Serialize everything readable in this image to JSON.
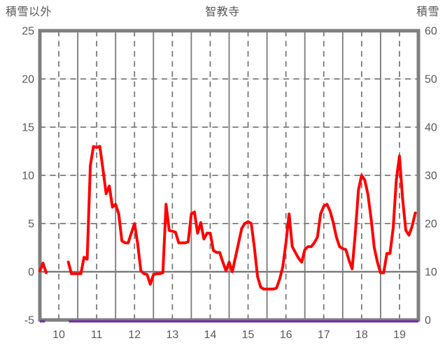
{
  "header": {
    "left_axis_title": "積雪以外",
    "chart_title": "智教寺",
    "right_axis_title": "積雪"
  },
  "chart_data": {
    "type": "line",
    "title": "智教寺",
    "station_name": "智教寺",
    "x_axis": {
      "tick_labels": [
        "10",
        "11",
        "12",
        "13",
        "14",
        "15",
        "16",
        "17",
        "18",
        "19"
      ],
      "range_hours": [
        10,
        20
      ],
      "solid_grid": "every hour",
      "dashed_grid": "every half hour",
      "labels_centered_between_hour_lines": true
    },
    "y_axis_left": {
      "title": "積雪以外",
      "min": -5,
      "max": 25,
      "tick_labels": [
        "25",
        "20",
        "15",
        "10",
        "5",
        "0",
        "-5"
      ],
      "tick_values": [
        25,
        20,
        15,
        10,
        5,
        0,
        -5
      ],
      "dashed_grid_values": [
        20,
        15,
        10,
        5
      ],
      "solid_zero_line": 0
    },
    "y_axis_right": {
      "title": "積雪",
      "min": 0,
      "max": 60,
      "tick_labels": [
        "60",
        "50",
        "40",
        "30",
        "20",
        "10",
        "0"
      ],
      "tick_values": [
        60,
        50,
        40,
        30,
        20,
        10,
        0
      ]
    },
    "series": [
      {
        "name": "積雪以外",
        "color": "#ff0000",
        "axis": "left",
        "start_time": "10:00",
        "interval_min": 5,
        "note": "null = missing data gap approx 10:15-10:40",
        "values": [
          0.1,
          0.9,
          -0.1,
          null,
          null,
          null,
          null,
          null,
          null,
          1.0,
          -0.2,
          -0.2,
          -0.2,
          -0.2,
          1.5,
          1.3,
          11.0,
          13.0,
          12.9,
          13.0,
          10.6,
          8.1,
          8.9,
          6.7,
          7.0,
          6.0,
          3.2,
          3.0,
          3.0,
          4.0,
          5.0,
          2.9,
          0.1,
          -0.2,
          -0.3,
          -1.3,
          -0.3,
          -0.2,
          -0.2,
          -0.1,
          7.0,
          4.3,
          4.2,
          4.1,
          3.0,
          3.0,
          3.0,
          3.1,
          6.0,
          6.2,
          4.0,
          5.1,
          3.4,
          4.0,
          4.0,
          2.2,
          2.0,
          2.0,
          1.0,
          0.1,
          1.0,
          0.0,
          1.5,
          3.0,
          4.5,
          5.0,
          5.2,
          5.0,
          2.5,
          -0.5,
          -1.6,
          -1.8,
          -1.8,
          -1.8,
          -1.8,
          -1.7,
          -0.8,
          0.5,
          3.0,
          6.0,
          2.6,
          2.0,
          1.4,
          1.0,
          2.3,
          2.6,
          2.6,
          3.0,
          3.6,
          6.0,
          6.8,
          7.0,
          6.3,
          5.1,
          3.6,
          2.6,
          2.4,
          2.3,
          1.2,
          0.3,
          4.0,
          8.5,
          10.0,
          9.5,
          8.0,
          5.5,
          2.5,
          1.0,
          -0.1,
          -0.1,
          1.9,
          1.9,
          4.5,
          9.5,
          12.0,
          7.5,
          4.3,
          3.8,
          4.7,
          6.1
        ]
      },
      {
        "name": "積雪",
        "color": "#7030a0",
        "axis": "right",
        "value": 0,
        "segments_min": [
          [
            0,
            8
          ],
          [
            46,
            600
          ]
        ],
        "note": "flat snow depth 0 cm along bottom edge, gap approx 10:08-10:46"
      }
    ],
    "style": {
      "background": "#ffffff",
      "border_color": "#7f7f7f",
      "grid_color": "#7a7a7a",
      "grid_faint_color": "#dcdcdc",
      "label_color": "#595959"
    }
  }
}
